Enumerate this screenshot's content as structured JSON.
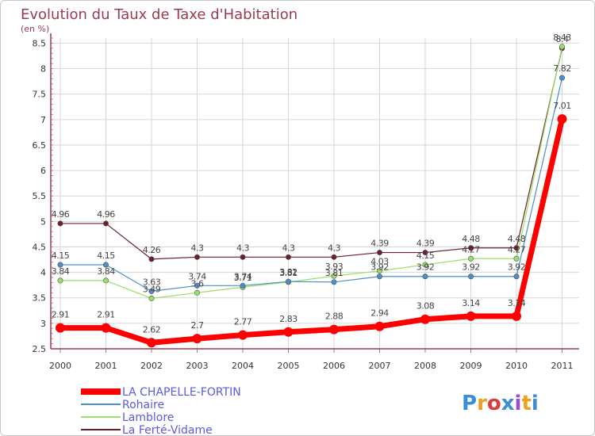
{
  "chart_data": {
    "type": "line",
    "title": "Evolution du Taux de Taxe d'Habitation",
    "ylabel": "(en %)",
    "xlabel": "",
    "ylim": [
      2.5,
      8.6
    ],
    "yticks": [
      "2.5",
      "3",
      "3.5",
      "4",
      "4.5",
      "5",
      "5.5",
      "6",
      "6.5",
      "7",
      "7.5",
      "8",
      "8.5"
    ],
    "categories": [
      "2000",
      "2001",
      "2002",
      "2003",
      "2004",
      "2005",
      "2006",
      "2007",
      "2008",
      "2009",
      "2010",
      "2011"
    ],
    "series": [
      {
        "name": "La Ferté-Vidame",
        "color": "#6b1f2a",
        "values": [
          4.96,
          4.96,
          4.26,
          4.3,
          4.3,
          4.3,
          4.3,
          4.39,
          4.39,
          4.48,
          4.48,
          8.4
        ],
        "labels": [
          "4.96",
          "4.96",
          "4.26",
          "4.3",
          "4.3",
          "4.3",
          "4.3",
          "4.39",
          "4.39",
          "4.48",
          "4.48",
          "8.4"
        ]
      },
      {
        "name": "Lamblore",
        "color": "#99e066",
        "values": [
          3.84,
          3.84,
          3.49,
          3.6,
          3.71,
          3.81,
          3.93,
          4.03,
          4.15,
          4.27,
          4.27,
          8.43
        ],
        "labels": [
          "3.84",
          "3.84",
          "3.49",
          "3.6",
          "3.71",
          "3.81",
          "3.93",
          "4.03",
          "4.15",
          "4.27",
          "4.27",
          "8.43"
        ]
      },
      {
        "name": "Rohaire",
        "color": "#4a90c8",
        "values": [
          4.15,
          4.15,
          3.63,
          3.74,
          3.74,
          3.82,
          3.81,
          3.92,
          3.92,
          3.92,
          3.92,
          7.82
        ],
        "labels": [
          "4.15",
          "4.15",
          "3.63",
          "3.74",
          "3.74",
          "3.82",
          "3.81",
          "3.92",
          "3.92",
          "3.92",
          "3.92",
          "7.82"
        ]
      },
      {
        "name": "LA CHAPELLE-FORTIN",
        "color": "#ff0000",
        "values": [
          2.91,
          2.91,
          2.62,
          2.7,
          2.77,
          2.83,
          2.88,
          2.94,
          3.08,
          3.14,
          3.14,
          7.01
        ],
        "labels": [
          "2.91",
          "2.91",
          "2.62",
          "2.7",
          "2.77",
          "2.83",
          "2.88",
          "2.94",
          "3.08",
          "3.14",
          "3.14",
          "7.01"
        ]
      }
    ],
    "legend": {
      "placement": "bottom-left",
      "order": [
        "LA CHAPELLE-FORTIN",
        "Rohaire",
        "Lamblore",
        "La Ferté-Vidame"
      ]
    }
  },
  "logo": {
    "letters": [
      "P",
      "r",
      "o",
      "x",
      "i",
      "t",
      "i"
    ],
    "colors": [
      "#3a8fd6",
      "#f0a020",
      "#e03a3a",
      "#3a8fd6",
      "#9a4ad6",
      "#f0a020",
      "#3a8fd6"
    ]
  },
  "colors": {
    "title": "#9b3b4f",
    "axis": "#9b3b4f",
    "grid": "#d6d6d6",
    "legend_text": "#5a5ae6"
  }
}
